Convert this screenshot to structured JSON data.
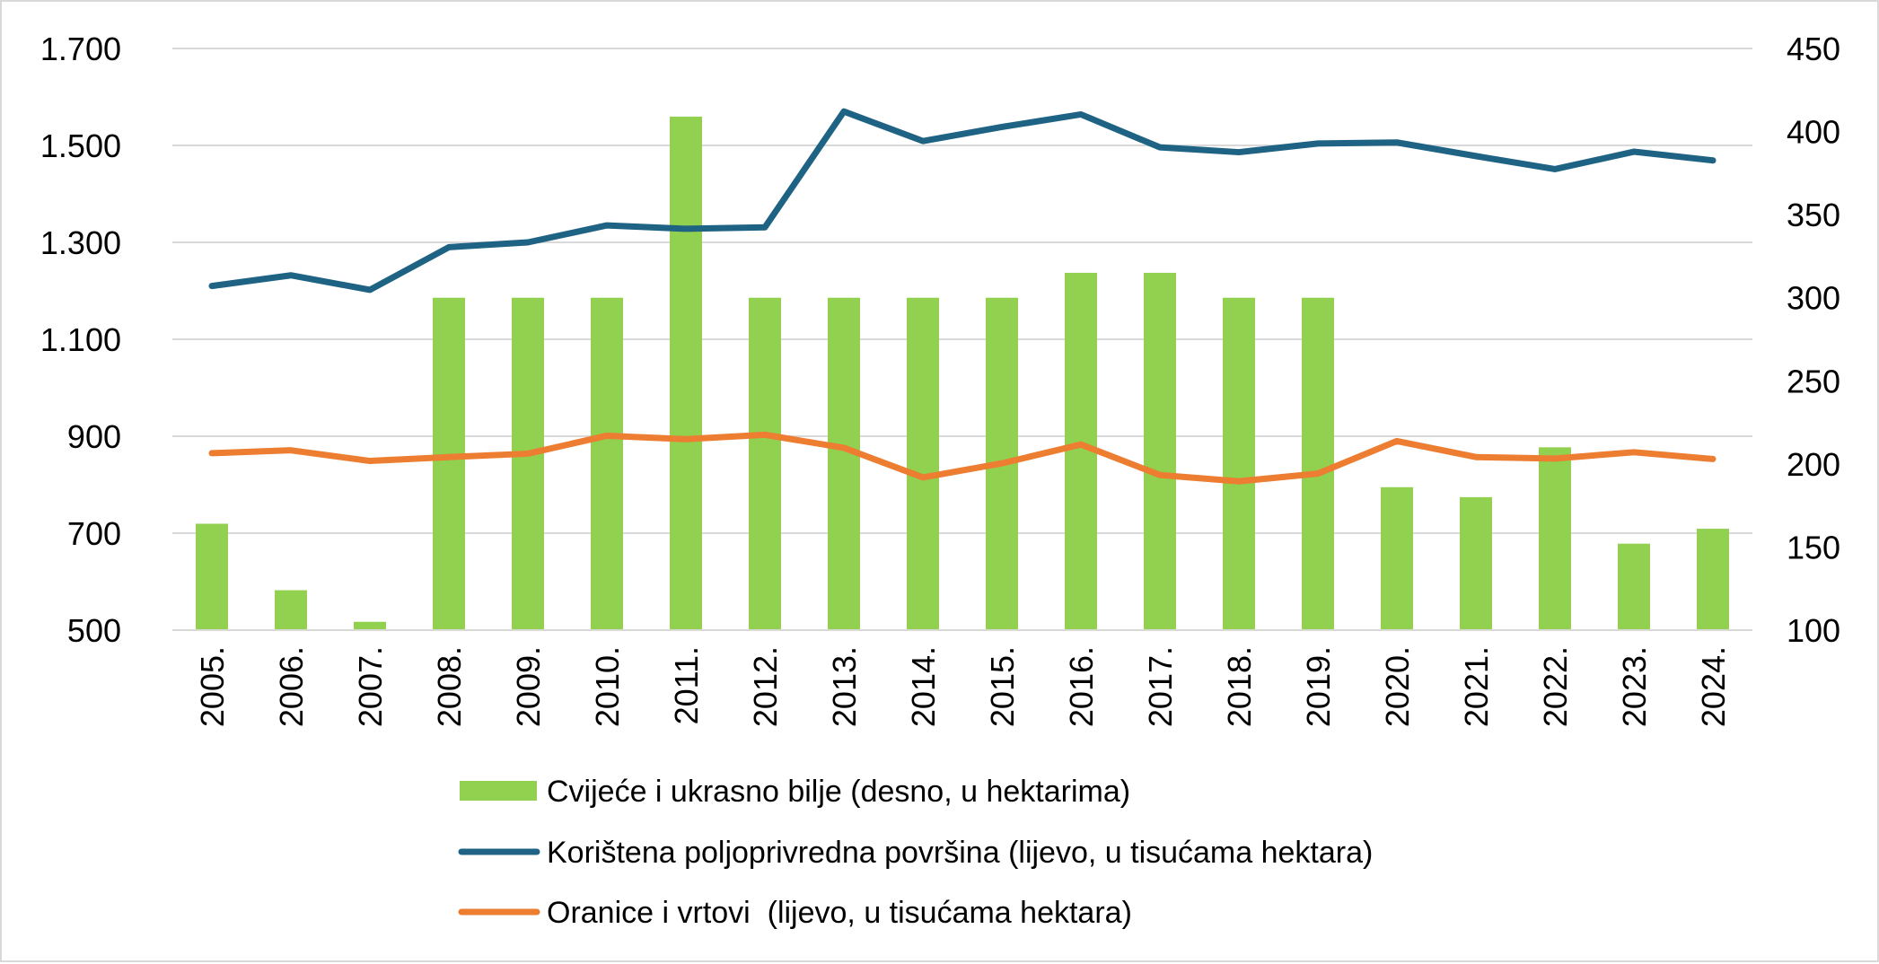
{
  "chart_data": {
    "type": "bar+line",
    "categories": [
      "2005.",
      "2006.",
      "2007.",
      "2008.",
      "2009.",
      "2010.",
      "2011.",
      "2012.",
      "2013.",
      "2014.",
      "2015.",
      "2016.",
      "2017.",
      "2018.",
      "2019.",
      "2020.",
      "2021.",
      "2022.",
      "2023.",
      "2024."
    ],
    "left_axis": {
      "ylim": [
        500,
        1700
      ],
      "ticks": [
        500,
        700,
        900,
        1100,
        1300,
        1500,
        1700
      ],
      "tick_labels": [
        "500",
        "700",
        "900",
        "1.100",
        "1.300",
        "1.500",
        "1.700"
      ]
    },
    "right_axis": {
      "ylim": [
        100,
        450
      ],
      "ticks": [
        100,
        150,
        200,
        250,
        300,
        350,
        400,
        450
      ],
      "tick_labels": [
        "100",
        "150",
        "200",
        "250",
        "300",
        "350",
        "400",
        "450"
      ]
    },
    "grid": true,
    "legend_position": "bottom",
    "series": [
      {
        "name": "Cvijeće i ukrasno bilje (desno, u hektarima)",
        "type": "bar",
        "axis": "right",
        "color": "#92d050",
        "values": [
          164,
          124,
          105,
          300,
          300,
          300,
          409,
          300,
          300,
          300,
          300,
          315,
          315,
          300,
          300,
          186,
          180,
          210,
          152,
          161
        ]
      },
      {
        "name": "Korištena poljoprivredna površina (lijevo, u tisućama hektara)",
        "type": "line",
        "axis": "left",
        "color": "#1f6384",
        "values": [
          1210,
          1232,
          1202,
          1290,
          1300,
          1335,
          1328,
          1331,
          1570,
          1509,
          1538,
          1564,
          1496,
          1486,
          1504,
          1506,
          1478,
          1451,
          1487,
          1469
        ]
      },
      {
        "name": "Oranice i vrtovi  (lijevo, u tisućama hektara)",
        "type": "line",
        "axis": "left",
        "color": "#ed7d31",
        "values": [
          865,
          871,
          849,
          857,
          864,
          901,
          894,
          903,
          876,
          815,
          844,
          883,
          820,
          807,
          823,
          890,
          857,
          854,
          867,
          853
        ]
      }
    ]
  }
}
